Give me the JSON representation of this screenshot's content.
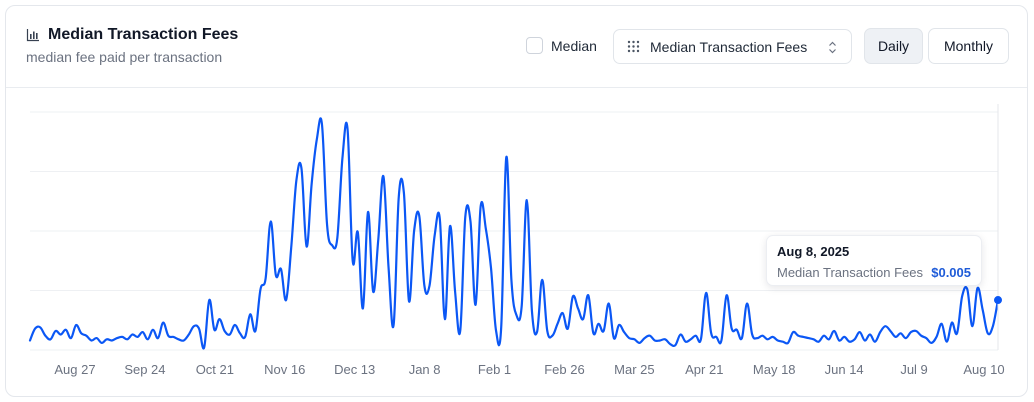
{
  "header": {
    "title": "Median Transaction Fees",
    "subtitle": "median fee paid per transaction",
    "title_icon": "bar-chart-icon"
  },
  "controls": {
    "median_label": "Median",
    "median_checked": false,
    "metric_select": "Median Transaction Fees",
    "daily_label": "Daily",
    "monthly_label": "Monthly",
    "active_period": "Daily"
  },
  "tooltip": {
    "date": "Aug 8, 2025",
    "label": "Median Transaction Fees",
    "value": "$0.005"
  },
  "chart_data": {
    "type": "line",
    "line_color": "#0b57f5",
    "grid": true,
    "x_tick_labels": [
      "Aug 27",
      "Sep 24",
      "Oct 21",
      "Nov 16",
      "Dec 13",
      "Jan 8",
      "Feb 1",
      "Feb 26",
      "Mar 25",
      "Apr 21",
      "May 18",
      "Jun 14",
      "Jul 9",
      "Aug 10"
    ],
    "series": [
      {
        "values": [
          0.8,
          1.8,
          1.9,
          1.2,
          0.9,
          1.6,
          1.3,
          1.7,
          1.0,
          2.1,
          1.4,
          1.2,
          0.8,
          1.0,
          0.6,
          0.9,
          0.8,
          1.0,
          1.1,
          0.9,
          1.3,
          1.1,
          1.5,
          0.9,
          1.7,
          1.0,
          2.3,
          1.2,
          1.1,
          0.9,
          0.8,
          1.3,
          2.0,
          1.8,
          0.2,
          4.2,
          1.7,
          2.6,
          1.6,
          1.3,
          2.1,
          1.4,
          1.1,
          3.0,
          1.6,
          5.1,
          6.0,
          10.8,
          6.3,
          6.8,
          4.2,
          8.6,
          14.2,
          15.3,
          8.7,
          14.0,
          17.7,
          19.0,
          10.5,
          8.8,
          9.4,
          16.1,
          18.6,
          7.5,
          9.9,
          3.5,
          11.6,
          4.9,
          9.3,
          14.6,
          7.0,
          2.1,
          12.9,
          13.2,
          4.1,
          10.0,
          11.3,
          5.4,
          5.4,
          9.6,
          11.1,
          2.6,
          10.4,
          4.9,
          1.6,
          11.2,
          10.8,
          3.8,
          12.1,
          10.2,
          6.9,
          1.6,
          1.9,
          16.2,
          5.9,
          2.9,
          3.7,
          12.6,
          3.3,
          1.5,
          5.9,
          1.6,
          1.2,
          2.2,
          3.1,
          1.8,
          4.5,
          3.5,
          2.6,
          4.6,
          1.4,
          2.2,
          1.6,
          3.9,
          1.0,
          2.1,
          1.5,
          1.0,
          0.9,
          0.6,
          1.0,
          1.2,
          0.8,
          0.8,
          0.9,
          0.5,
          0.4,
          1.3,
          0.7,
          0.9,
          1.2,
          0.9,
          4.8,
          1.4,
          1.1,
          0.8,
          4.6,
          1.8,
          1.7,
          1.0,
          3.9,
          1.3,
          1.0,
          1.2,
          0.9,
          1.1,
          0.8,
          0.7,
          0.6,
          1.5,
          1.2,
          1.1,
          1.0,
          0.9,
          0.7,
          1.2,
          0.9,
          1.6,
          0.8,
          1.1,
          0.7,
          0.9,
          1.5,
          0.8,
          1.3,
          0.7,
          1.5,
          2.0,
          1.6,
          1.1,
          1.4,
          1.0,
          1.5,
          1.6,
          1.2,
          1.0,
          0.6,
          1.1,
          2.2,
          0.7,
          2.3,
          1.4,
          4.5,
          5.1,
          2.0,
          5.2,
          3.4,
          1.4,
          2.0,
          4.2
        ]
      }
    ],
    "ylim": [
      0,
      20
    ]
  }
}
